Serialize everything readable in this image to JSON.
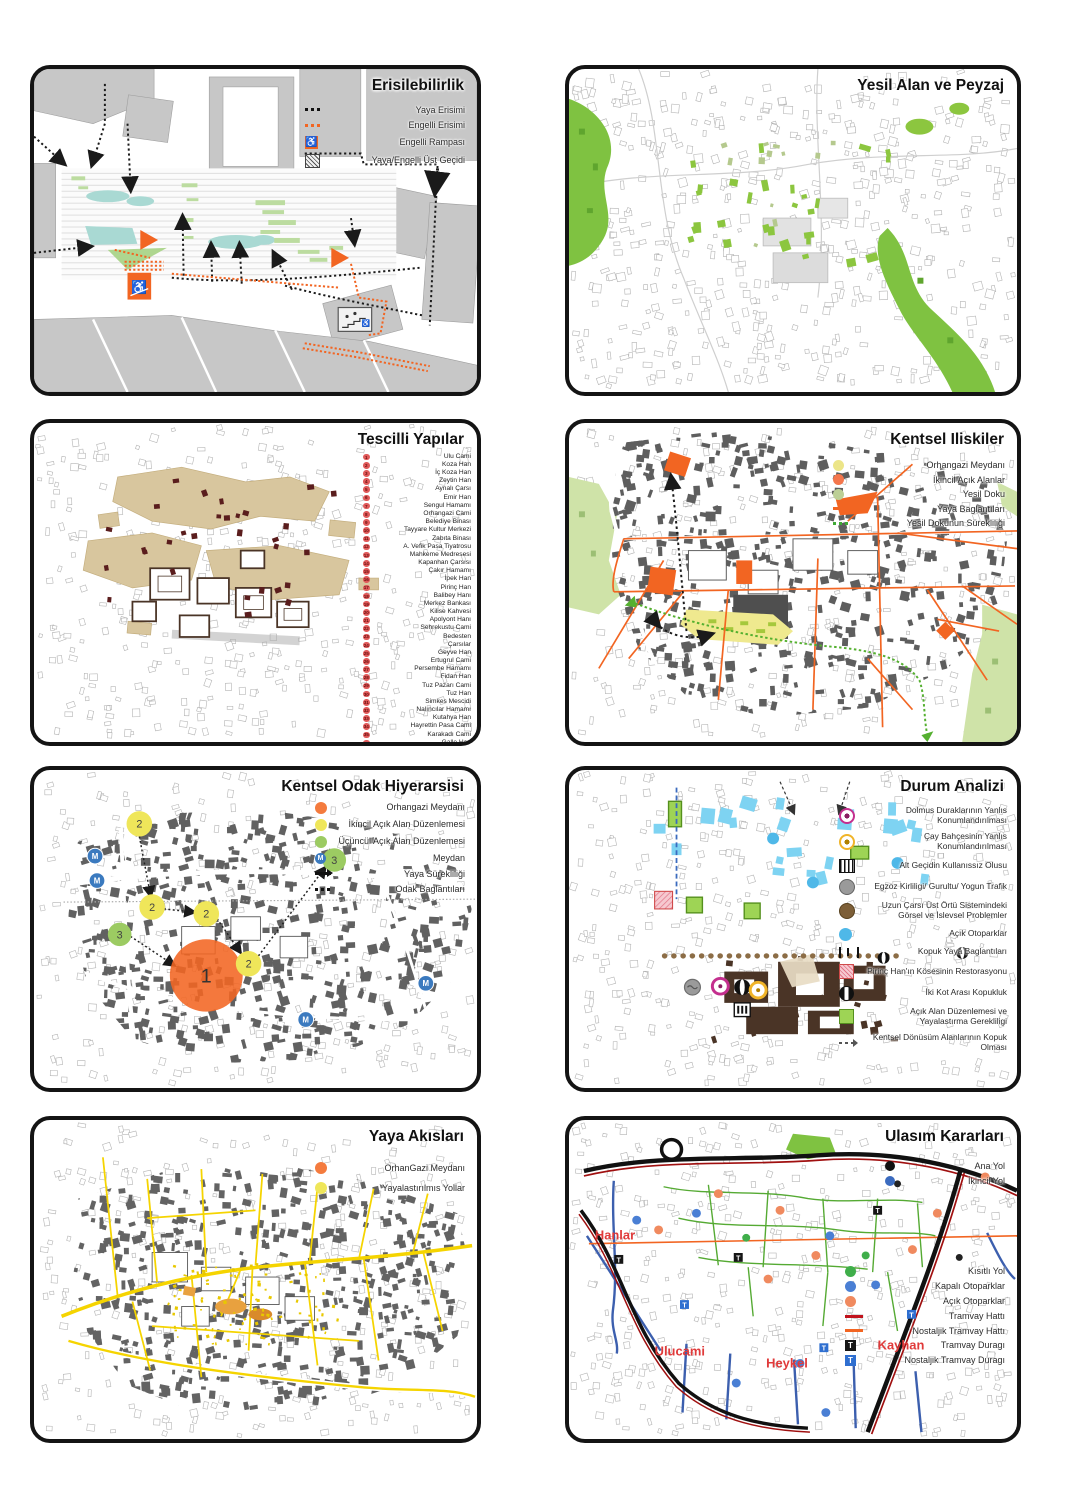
{
  "icons": {
    "wheelchair": "♿",
    "tram": "T",
    "metro": "M"
  },
  "panels": {
    "p1": {
      "title": "Erisilebilirlik",
      "legend": [
        {
          "label": "Yaya Erisimi",
          "swatch": "dots-black"
        },
        {
          "label": "Engelli Erisimi",
          "swatch": "dots-orange"
        },
        {
          "label": "Engelli Rampası",
          "swatch": "icon-wheelchair",
          "icon_text": "♿"
        },
        {
          "label": "Yaya/Engelli Üst Geçidi",
          "swatch": "icon-overpass"
        }
      ]
    },
    "p2": {
      "title": "Yesil Alan ve Peyzaj"
    },
    "p3": {
      "title": "Tescilli Yapılar",
      "items": [
        "Ulu Cami",
        "Koza Han",
        "İç Koza Han",
        "Zeytin Han",
        "Aynalı Çarsı",
        "Emir Han",
        "Sengul Hamamı",
        "Orhangazi Cami",
        "Belediye Binası",
        "Tayyare Kultur Merkezi",
        "Zabıta Binası",
        "A. Vefik Pasa Tiyatrosu",
        "Mahkeme Medresesi",
        "Kapanhan Çarsısı",
        "Çakır Hamamı",
        "İpek Han",
        "Pirinç Han",
        "Balibey Hanı",
        "Merkez Bankası",
        "Kilise Kahvesi",
        "Apolyont Hanı",
        "Sehrekustu Cami",
        "Bedesten",
        "Çarsılar",
        "Geyve Han",
        "Ertugrul Cami",
        "Persembe Hamamı",
        "Fidan Han",
        "Tuz Pazarı Cami",
        "Tuz Han",
        "Simkes Mescidi",
        "Nalıncılar Hamamı",
        "Kutahya Han",
        "Hayrettin Pasa Cami",
        "Karakadı Cami",
        "Galle Han"
      ]
    },
    "p4": {
      "title": "Kentsel Iliskiler",
      "legend": [
        {
          "label": "Orhangazi Meydanı",
          "swatch": "circle-yellow"
        },
        {
          "label": "İkincil Açık Alanlar",
          "swatch": "circle-orange"
        },
        {
          "label": "Yesil Doku",
          "swatch": "circle-green"
        },
        {
          "label": "Yaya Baglantıları",
          "swatch": "line-orange"
        },
        {
          "label": "Yesil Dokunun Sürekliliği",
          "swatch": "dots-green"
        }
      ]
    },
    "p5": {
      "title": "Kentsel Odak Hiyerarsisi",
      "legend": [
        {
          "label": "Orhangazi Meydanı",
          "swatch": "circle-orange2"
        },
        {
          "label": "İkincil Açık Alan Düzenlemesi",
          "swatch": "circle-yellow2"
        },
        {
          "label": "Üçüncül Açık Alan Düzenlemesi",
          "swatch": "circle-green2"
        },
        {
          "label": "Meydan",
          "swatch": "circle-m",
          "icon_text": "M"
        },
        {
          "label": "Yaya Sürekliliği",
          "swatch": "arrow-black"
        },
        {
          "label": "Odak Baglantıları",
          "swatch": "dots-black"
        }
      ],
      "markers": {
        "primary": "1",
        "secondary": "2",
        "tertiary": "3",
        "metro": "M"
      }
    },
    "p6": {
      "title": "Durum Analizi",
      "legend": [
        {
          "label": "Dolmus Duraklarının Yanlıs Konumlandırılması",
          "swatch": "dot-magenta"
        },
        {
          "label": "Çay Bahçesinin Yanlıs Konumlandırılması",
          "swatch": "dot-yellow"
        },
        {
          "label": "Alt Geçidin Kullanıssız Olusu",
          "swatch": "icon-underpass"
        },
        {
          "label": "Egzoz Kirliligi/ Gurultu/ Yogun Trafik",
          "swatch": "circle-gray"
        },
        {
          "label": "Uzun Çarsı Üst Örtü Sistemindeki Görsel ve İslevsel Problemler",
          "swatch": "circle-brown"
        },
        {
          "label": "Açık Otoparklar",
          "swatch": "circle-blue"
        },
        {
          "label": "Kopuk Yaya Baglantıları",
          "swatch": "icon-broken-link"
        },
        {
          "label": "Pirinç Han'ın Kösesinin Restorasyonu",
          "swatch": "square-hatched-red"
        },
        {
          "label": "İki Kot Arası Kopukluk",
          "swatch": "circle-halved"
        },
        {
          "label": "Açık Alan Düzenlemesi ve Yayalastırma Gerekliligi",
          "swatch": "square-green"
        },
        {
          "label": "Kentsel Dönüsüm Alanlarının Kopuk Olması",
          "swatch": "arrow-dashed"
        }
      ]
    },
    "p7": {
      "title": "Yaya Akısları",
      "legend": [
        {
          "label": "OrhanGazi Meydanı",
          "swatch": "circle-orange2"
        },
        {
          "label": "Yayalastırılmıs Yollar",
          "swatch": "circle-yellow2"
        }
      ]
    },
    "p8": {
      "title": "Ulasım Kararları",
      "legend_top": [
        {
          "label": "Ana Yol",
          "swatch": "dot-black"
        },
        {
          "label": "İkincil Yol",
          "swatch": "dot-blue"
        }
      ],
      "legend_bottom": [
        {
          "label": "Kısıtlı Yol",
          "swatch": "dot-green"
        },
        {
          "label": "Kapalı Otoparklar",
          "swatch": "dot-blue2"
        },
        {
          "label": "Açık Otoparklar",
          "swatch": "dot-salmon"
        },
        {
          "label": "Tramvay Hattı",
          "swatch": "line-red"
        },
        {
          "label": "Nostaljik Tramvay Hattı",
          "swatch": "line-orange"
        },
        {
          "label": "Tramvay Duragı",
          "swatch": "tram-black",
          "icon_text": "T"
        },
        {
          "label": "Nostaljik Tramvay Duragı",
          "swatch": "tram-blue",
          "icon_text": "T"
        }
      ],
      "map_labels": {
        "hanlar": "Hanlar",
        "ulucami": "Ulucami",
        "heykel": "Heykel",
        "kayhan": "Kayhan"
      }
    }
  }
}
